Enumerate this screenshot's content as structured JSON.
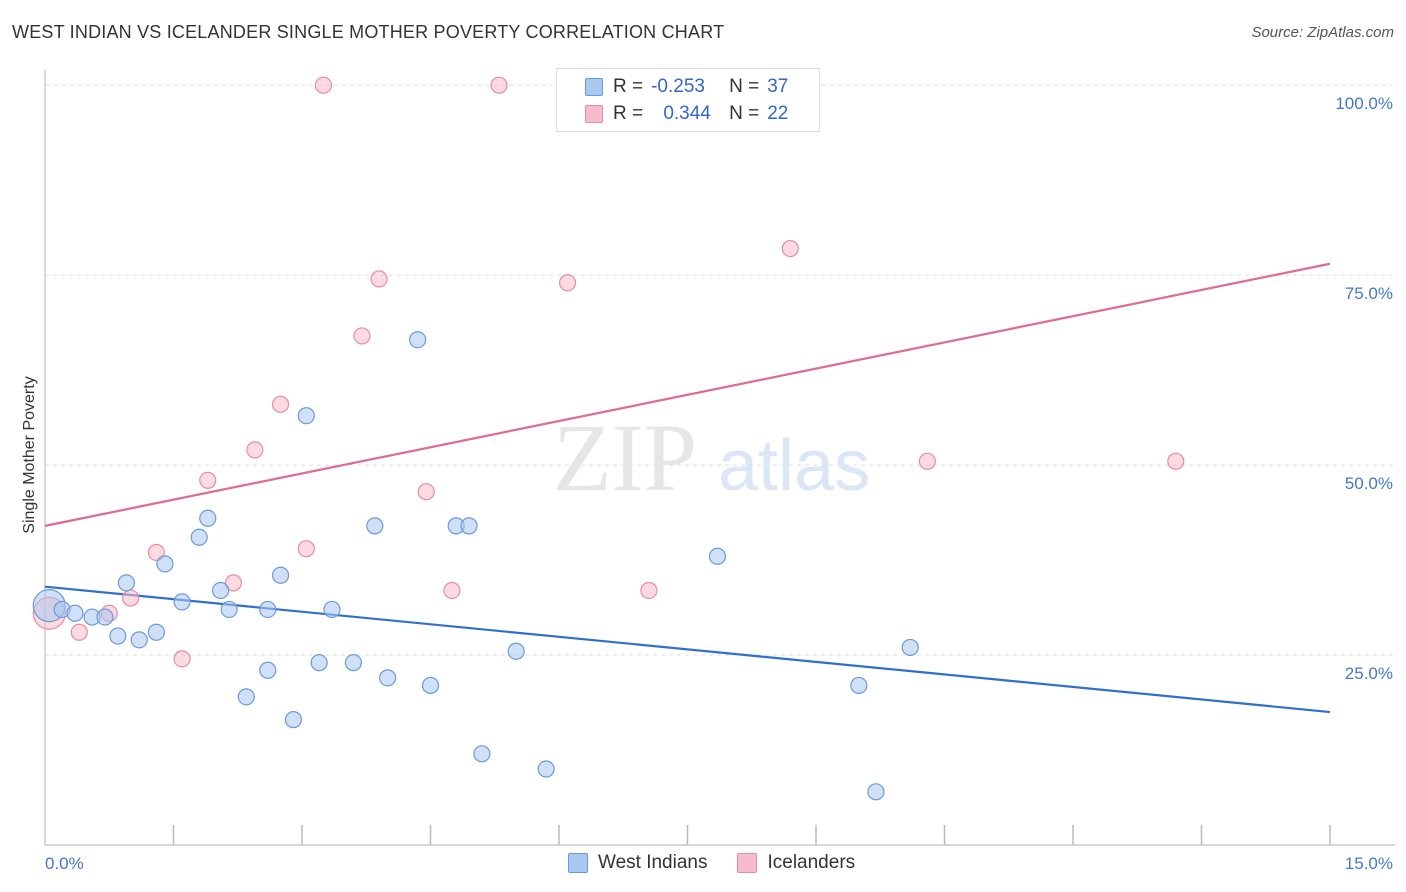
{
  "title": "WEST INDIAN VS ICELANDER SINGLE MOTHER POVERTY CORRELATION CHART",
  "source": "Source: ZipAtlas.com",
  "watermark": {
    "zip": "ZIP",
    "atlas": "atlas"
  },
  "legend": {
    "rows": [
      {
        "r_label": "R =",
        "r_value": "-0.253",
        "n_label": "N =",
        "n_value": "37"
      },
      {
        "r_label": "R =",
        "r_value": "0.344",
        "n_label": "N =",
        "n_value": "22"
      }
    ]
  },
  "bottom_legend": {
    "west_indians": "West Indians",
    "icelanders": "Icelanders"
  },
  "colors": {
    "west_indians_fill": "#a9c8f0",
    "west_indians_stroke": "#6a9ad8",
    "west_indians_line": "#2f6fd0",
    "icelanders_fill": "#f7bccb",
    "icelanders_stroke": "#e98aa6",
    "icelanders_line": "#e06a90",
    "tick_label": "#4477cc",
    "grid": "#dddddd"
  },
  "chart_data": {
    "type": "scatter",
    "title": "WEST INDIAN VS ICELANDER SINGLE MOTHER POVERTY CORRELATION CHART",
    "xlabel": "",
    "ylabel": "Single Mother Poverty",
    "xlim": [
      0,
      15
    ],
    "ylim": [
      0,
      102
    ],
    "x_tick_labels": [
      "0.0%",
      "15.0%"
    ],
    "y_ticks": [
      25,
      50,
      75,
      100
    ],
    "y_tick_labels": [
      "25.0%",
      "50.0%",
      "75.0%",
      "100.0%"
    ],
    "grid": true,
    "legend_position": "top-center",
    "series": [
      {
        "name": "West Indians",
        "color": "#a9c8f0",
        "points": [
          [
            0.05,
            31.5
          ],
          [
            0.2,
            31.0
          ],
          [
            0.35,
            30.5
          ],
          [
            0.55,
            30.0
          ],
          [
            0.7,
            30.0
          ],
          [
            0.85,
            27.5
          ],
          [
            0.95,
            34.5
          ],
          [
            1.1,
            27.0
          ],
          [
            1.3,
            28.0
          ],
          [
            1.4,
            37.0
          ],
          [
            1.6,
            32.0
          ],
          [
            1.8,
            40.5
          ],
          [
            1.9,
            43.0
          ],
          [
            2.05,
            33.5
          ],
          [
            2.15,
            31.0
          ],
          [
            2.35,
            19.5
          ],
          [
            2.6,
            23.0
          ],
          [
            2.6,
            31.0
          ],
          [
            2.75,
            35.5
          ],
          [
            2.9,
            16.5
          ],
          [
            3.05,
            56.5
          ],
          [
            3.2,
            24.0
          ],
          [
            3.35,
            31.0
          ],
          [
            3.6,
            24.0
          ],
          [
            3.85,
            42.0
          ],
          [
            4.0,
            22.0
          ],
          [
            4.35,
            66.5
          ],
          [
            4.5,
            21.0
          ],
          [
            4.8,
            42.0
          ],
          [
            4.95,
            42.0
          ],
          [
            5.1,
            12.0
          ],
          [
            5.5,
            25.5
          ],
          [
            5.85,
            10.0
          ],
          [
            7.85,
            38.0
          ],
          [
            9.5,
            21.0
          ],
          [
            9.7,
            7.0
          ],
          [
            10.1,
            26.0
          ]
        ]
      },
      {
        "name": "Icelanders",
        "color": "#f7bccb",
        "points": [
          [
            0.05,
            30.5
          ],
          [
            0.4,
            28.0
          ],
          [
            0.75,
            30.5
          ],
          [
            1.0,
            32.5
          ],
          [
            1.3,
            38.5
          ],
          [
            1.6,
            24.5
          ],
          [
            1.9,
            48.0
          ],
          [
            2.2,
            34.5
          ],
          [
            2.45,
            52.0
          ],
          [
            2.75,
            58.0
          ],
          [
            3.05,
            39.0
          ],
          [
            3.7,
            67.0
          ],
          [
            3.9,
            74.5
          ],
          [
            4.45,
            46.5
          ],
          [
            4.75,
            33.5
          ],
          [
            3.25,
            100.0
          ],
          [
            5.3,
            100.0
          ],
          [
            6.1,
            74.0
          ],
          [
            7.05,
            33.5
          ],
          [
            8.7,
            78.5
          ],
          [
            10.3,
            50.5
          ],
          [
            13.2,
            50.5
          ]
        ]
      }
    ],
    "trend_lines": [
      {
        "name": "West Indians",
        "x": [
          0,
          15
        ],
        "y": [
          34.0,
          17.5
        ]
      },
      {
        "name": "Icelanders",
        "x": [
          0,
          15
        ],
        "y": [
          42.0,
          76.5
        ]
      }
    ]
  }
}
